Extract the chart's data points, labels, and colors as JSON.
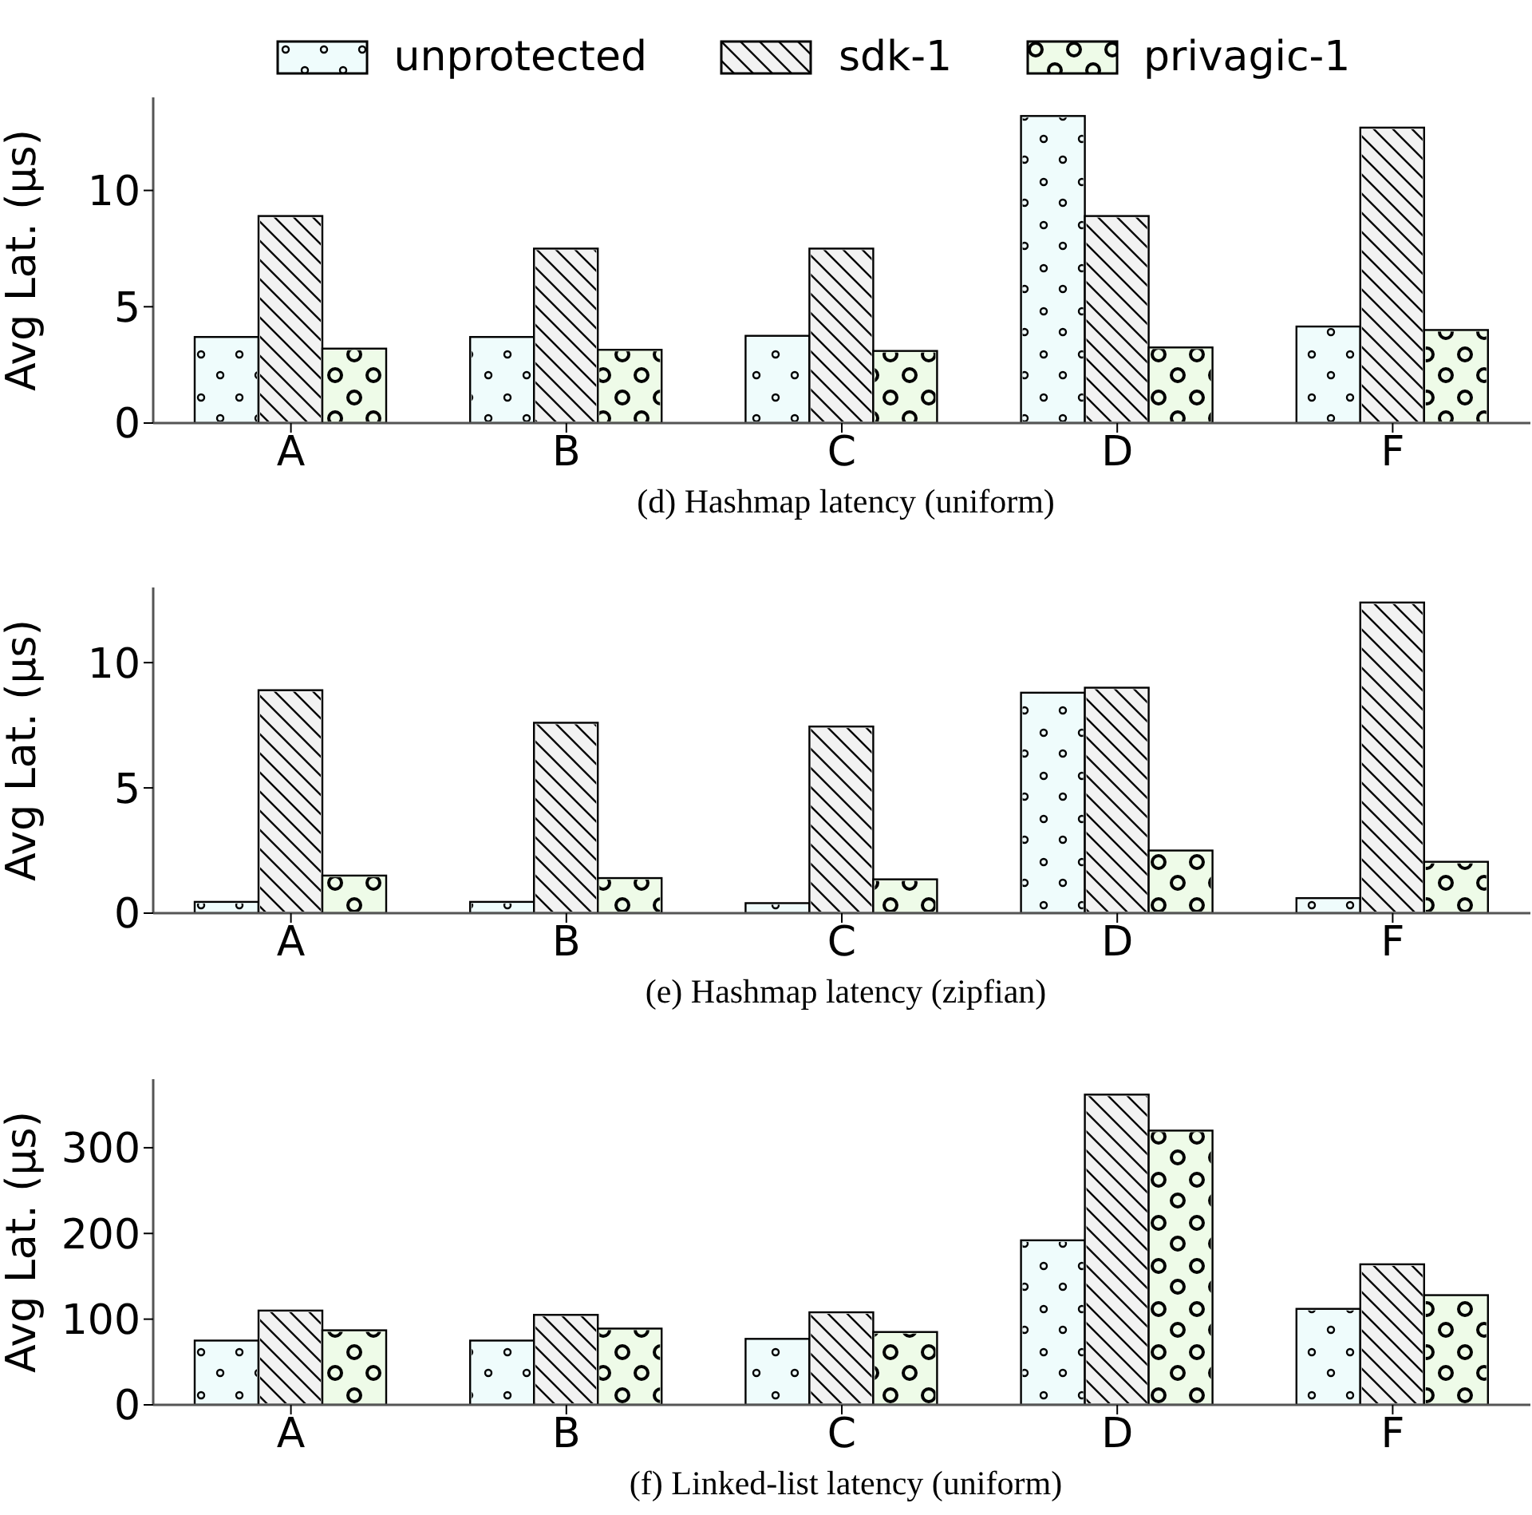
{
  "chart_data": [
    {
      "type": "bar",
      "title": "(d) Hashmap latency (uniform)",
      "ylabel": "Avg Lat. (µs)",
      "categories": [
        "A",
        "B",
        "C",
        "D",
        "F"
      ],
      "ylim": [
        0,
        14
      ],
      "yticks": [
        0,
        5,
        10
      ],
      "grid": false,
      "legend": "top",
      "series": [
        {
          "name": "unprotected",
          "color": "#effcfc",
          "values": [
            3.7,
            3.7,
            3.75,
            13.2,
            4.15
          ]
        },
        {
          "name": "sdk-1",
          "color": "#f2f2f2",
          "values": [
            8.9,
            7.5,
            7.5,
            8.9,
            12.7
          ]
        },
        {
          "name": "privagic-1",
          "color": "#eefbe8",
          "values": [
            3.2,
            3.15,
            3.1,
            3.25,
            4.0
          ]
        }
      ]
    },
    {
      "type": "bar",
      "title": "(e) Hashmap latency (zipfian)",
      "ylabel": "Avg Lat. (µs)",
      "categories": [
        "A",
        "B",
        "C",
        "D",
        "F"
      ],
      "ylim": [
        0,
        13
      ],
      "yticks": [
        0,
        5,
        10
      ],
      "grid": false,
      "series": [
        {
          "color": "#effcfc",
          "values": [
            0.45,
            0.45,
            0.4,
            8.8,
            0.6
          ]
        },
        {
          "color": "#f2f2f2",
          "values": [
            8.9,
            7.6,
            7.45,
            9.0,
            12.4
          ]
        },
        {
          "color": "#eefbe8",
          "values": [
            1.5,
            1.4,
            1.35,
            2.5,
            2.05
          ]
        }
      ]
    },
    {
      "type": "bar",
      "title": "(f) Linked-list latency (uniform)",
      "ylabel": "Avg Lat. (µs)",
      "categories": [
        "A",
        "B",
        "C",
        "D",
        "F"
      ],
      "ylim": [
        0,
        380
      ],
      "yticks": [
        0,
        100,
        200,
        300
      ],
      "grid": false,
      "series": [
        {
          "color": "#effcfc",
          "values": [
            75,
            75,
            77,
            192,
            112
          ]
        },
        {
          "color": "#f2f2f2",
          "values": [
            110,
            105,
            108,
            362,
            164
          ]
        },
        {
          "color": "#eefbe8",
          "values": [
            87,
            89,
            85,
            320,
            128
          ]
        }
      ]
    }
  ]
}
